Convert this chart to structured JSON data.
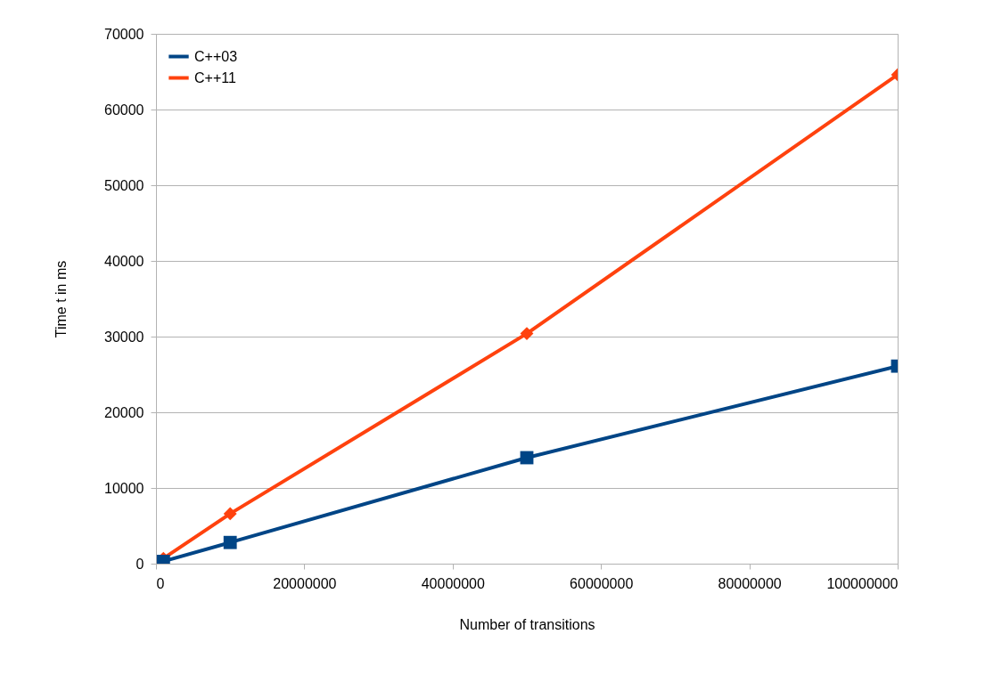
{
  "chart_data": {
    "type": "line",
    "xlabel": "Number of transitions",
    "ylabel": "Time t in ms",
    "x": [
      1000000,
      10000000,
      50000000,
      100000000
    ],
    "series": [
      {
        "name": "C++03",
        "color": "#004586",
        "marker": "square",
        "values": [
          300,
          2800,
          14000,
          26100
        ]
      },
      {
        "name": "C++11",
        "color": "#ff420e",
        "marker": "diamond",
        "values": [
          700,
          6600,
          30400,
          64600
        ]
      }
    ],
    "xlim": [
      0,
      100000000
    ],
    "xticks": [
      0,
      20000000,
      40000000,
      60000000,
      80000000,
      100000000
    ],
    "ylim": [
      0,
      70000
    ],
    "yticks": [
      0,
      10000,
      20000,
      30000,
      40000,
      50000,
      60000,
      70000
    ],
    "grid": "y",
    "legend": "top left",
    "line_style": "solid"
  }
}
